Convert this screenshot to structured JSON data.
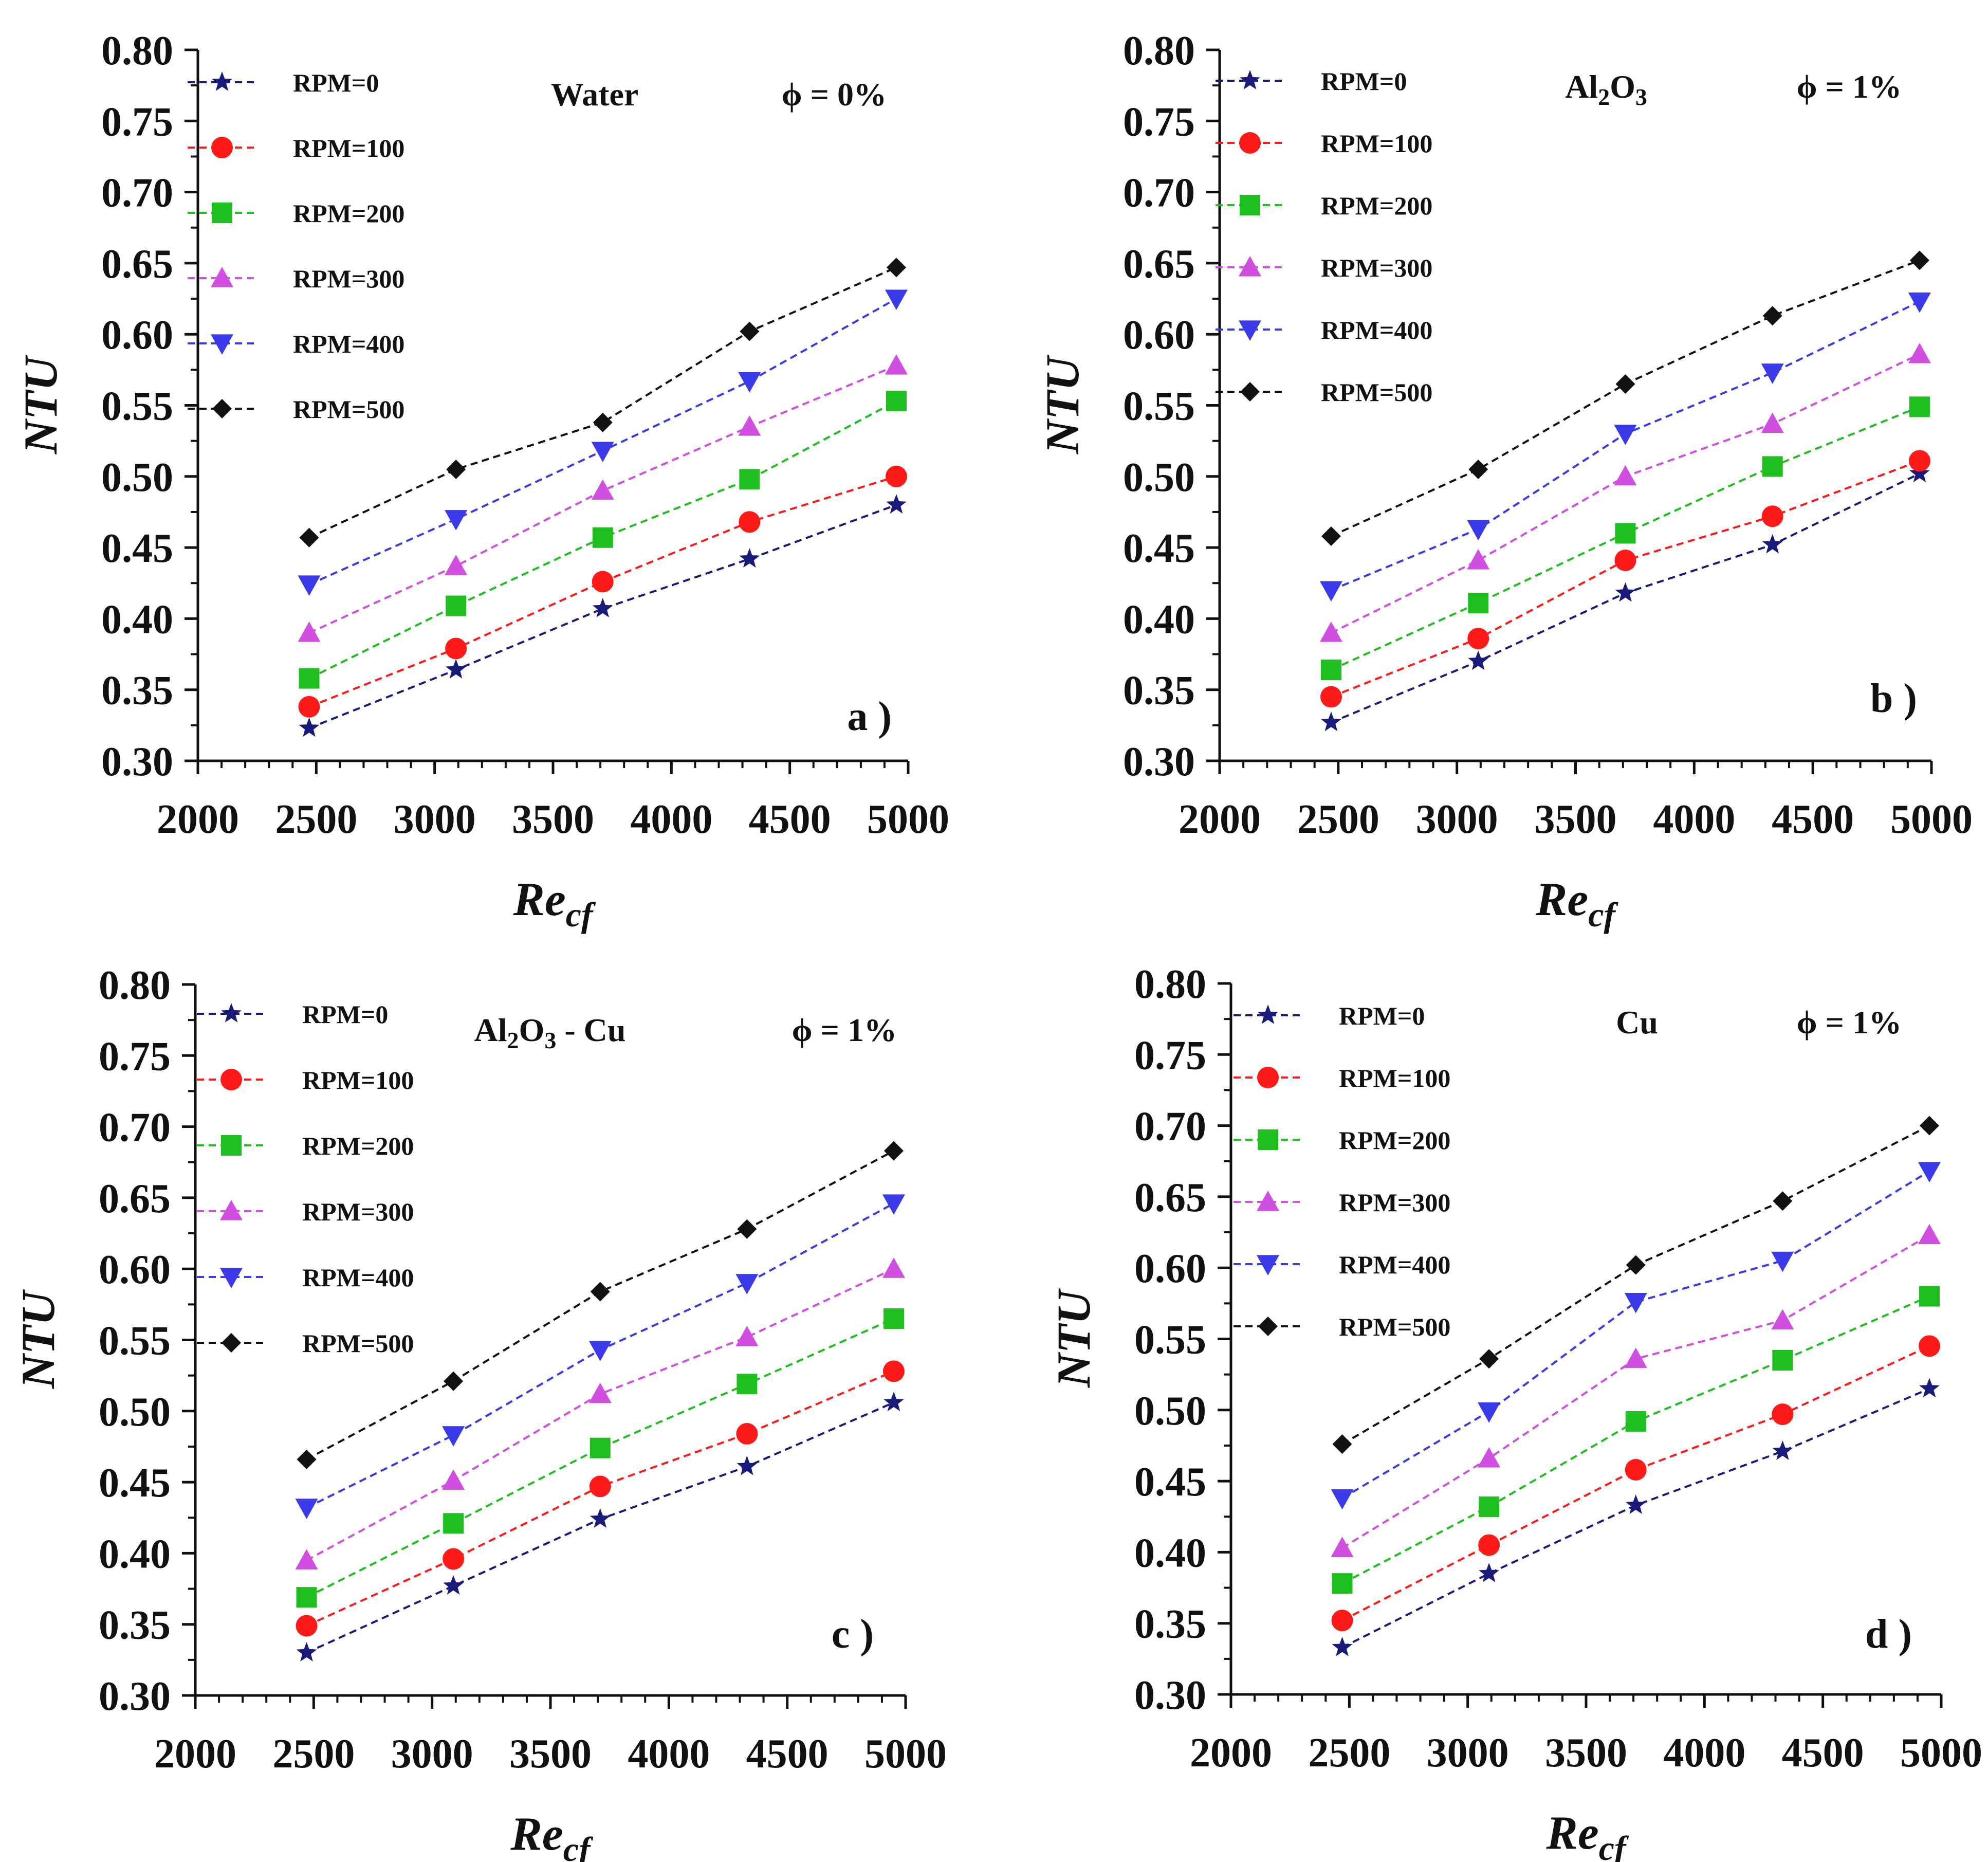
{
  "figure": {
    "series_styles": [
      {
        "name": "RPM=0",
        "color": "#1a1a7a",
        "marker": "star"
      },
      {
        "name": "RPM=100",
        "color": "#ff1a1a",
        "marker": "circle"
      },
      {
        "name": "RPM=200",
        "color": "#1fbf1f",
        "marker": "square"
      },
      {
        "name": "RPM=300",
        "color": "#d14fe0",
        "marker": "triangle-up"
      },
      {
        "name": "RPM=400",
        "color": "#3a3ae8",
        "marker": "triangle-down"
      },
      {
        "name": "RPM=500",
        "color": "#111111",
        "marker": "diamond"
      }
    ]
  },
  "chart_data": [
    {
      "type": "line",
      "panel_label": "a )",
      "fluid_label": "Water",
      "fluid_sub": [],
      "phi_label": "ϕ = 0%",
      "xlabel_main": "Re",
      "xlabel_sub": "cf",
      "ylabel": "NTU",
      "xlim": [
        2000,
        5000
      ],
      "ylim": [
        0.3,
        0.8
      ],
      "xticks": [
        "2000",
        "2500",
        "3000",
        "3500",
        "4000",
        "4500",
        "5000"
      ],
      "yticks": [
        "0.30",
        "0.35",
        "0.40",
        "0.45",
        "0.50",
        "0.55",
        "0.60",
        "0.65",
        "0.70",
        "0.75",
        "0.80"
      ],
      "x": [
        2470,
        3090,
        3710,
        4330,
        4950
      ],
      "series": [
        {
          "name": "RPM=0",
          "values": [
            0.323,
            0.364,
            0.407,
            0.442,
            0.48
          ]
        },
        {
          "name": "RPM=100",
          "values": [
            0.338,
            0.379,
            0.426,
            0.468,
            0.5
          ]
        },
        {
          "name": "RPM=200",
          "values": [
            0.358,
            0.409,
            0.457,
            0.498,
            0.553
          ]
        },
        {
          "name": "RPM=300",
          "values": [
            0.39,
            0.437,
            0.49,
            0.535,
            0.578
          ]
        },
        {
          "name": "RPM=400",
          "values": [
            0.424,
            0.47,
            0.518,
            0.567,
            0.625
          ]
        },
        {
          "name": "RPM=500",
          "values": [
            0.457,
            0.505,
            0.538,
            0.602,
            0.647
          ]
        }
      ]
    },
    {
      "type": "line",
      "panel_label": "b )",
      "fluid_label": "Al",
      "fluid_sub": [
        "2",
        "O",
        "3"
      ],
      "phi_label": "ϕ = 1%",
      "xlabel_main": "Re",
      "xlabel_sub": "cf",
      "ylabel": "NTU",
      "xlim": [
        2000,
        5000
      ],
      "ylim": [
        0.3,
        0.8
      ],
      "xticks": [
        "2000",
        "2500",
        "3000",
        "3500",
        "4000",
        "4500",
        "5000"
      ],
      "yticks": [
        "0.30",
        "0.35",
        "0.40",
        "0.45",
        "0.50",
        "0.55",
        "0.60",
        "0.65",
        "0.70",
        "0.75",
        "0.80"
      ],
      "x": [
        2470,
        3090,
        3710,
        4330,
        4950
      ],
      "series": [
        {
          "name": "RPM=0",
          "values": [
            0.327,
            0.37,
            0.418,
            0.452,
            0.502
          ]
        },
        {
          "name": "RPM=100",
          "values": [
            0.345,
            0.386,
            0.441,
            0.472,
            0.511
          ]
        },
        {
          "name": "RPM=200",
          "values": [
            0.364,
            0.411,
            0.46,
            0.507,
            0.549
          ]
        },
        {
          "name": "RPM=300",
          "values": [
            0.39,
            0.441,
            0.5,
            0.537,
            0.586
          ]
        },
        {
          "name": "RPM=400",
          "values": [
            0.42,
            0.463,
            0.53,
            0.573,
            0.623
          ]
        },
        {
          "name": "RPM=500",
          "values": [
            0.458,
            0.505,
            0.565,
            0.613,
            0.652
          ]
        }
      ]
    },
    {
      "type": "line",
      "panel_label": "c )",
      "fluid_label": "Al",
      "fluid_sub": [
        "2",
        "O",
        "3",
        " - Cu"
      ],
      "phi_label": "ϕ = 1%",
      "xlabel_main": "Re",
      "xlabel_sub": "cf",
      "ylabel": "NTU",
      "xlim": [
        2000,
        5000
      ],
      "ylim": [
        0.3,
        0.8
      ],
      "xticks": [
        "2000",
        "2500",
        "3000",
        "3500",
        "4000",
        "4500",
        "5000"
      ],
      "yticks": [
        "0.30",
        "0.35",
        "0.40",
        "0.45",
        "0.50",
        "0.55",
        "0.60",
        "0.65",
        "0.70",
        "0.75",
        "0.80"
      ],
      "x": [
        2470,
        3090,
        3710,
        4330,
        4950
      ],
      "series": [
        {
          "name": "RPM=0",
          "values": [
            0.33,
            0.377,
            0.424,
            0.461,
            0.506
          ]
        },
        {
          "name": "RPM=100",
          "values": [
            0.349,
            0.396,
            0.447,
            0.484,
            0.528
          ]
        },
        {
          "name": "RPM=200",
          "values": [
            0.369,
            0.421,
            0.474,
            0.519,
            0.565
          ]
        },
        {
          "name": "RPM=300",
          "values": [
            0.395,
            0.451,
            0.512,
            0.552,
            0.6
          ]
        },
        {
          "name": "RPM=400",
          "values": [
            0.432,
            0.483,
            0.543,
            0.59,
            0.646
          ]
        },
        {
          "name": "RPM=500",
          "values": [
            0.466,
            0.521,
            0.584,
            0.628,
            0.683
          ]
        }
      ]
    },
    {
      "type": "line",
      "panel_label": "d )",
      "fluid_label": "Cu",
      "fluid_sub": [],
      "phi_label": "ϕ = 1%",
      "xlabel_main": "Re",
      "xlabel_sub": "cf",
      "ylabel": "NTU",
      "xlim": [
        2000,
        5000
      ],
      "ylim": [
        0.3,
        0.8
      ],
      "xticks": [
        "2000",
        "2500",
        "3000",
        "3500",
        "4000",
        "4500",
        "5000"
      ],
      "yticks": [
        "0.30",
        "0.35",
        "0.40",
        "0.45",
        "0.50",
        "0.55",
        "0.60",
        "0.65",
        "0.70",
        "0.75",
        "0.80"
      ],
      "x": [
        2470,
        3090,
        3710,
        4330,
        4950
      ],
      "series": [
        {
          "name": "RPM=0",
          "values": [
            0.333,
            0.385,
            0.433,
            0.471,
            0.515
          ]
        },
        {
          "name": "RPM=100",
          "values": [
            0.352,
            0.405,
            0.458,
            0.497,
            0.545
          ]
        },
        {
          "name": "RPM=200",
          "values": [
            0.378,
            0.432,
            0.492,
            0.535,
            0.58
          ]
        },
        {
          "name": "RPM=300",
          "values": [
            0.403,
            0.466,
            0.536,
            0.563,
            0.623
          ]
        },
        {
          "name": "RPM=400",
          "values": [
            0.438,
            0.499,
            0.576,
            0.605,
            0.668
          ]
        },
        {
          "name": "RPM=500",
          "values": [
            0.476,
            0.536,
            0.602,
            0.647,
            0.7
          ]
        }
      ]
    }
  ]
}
